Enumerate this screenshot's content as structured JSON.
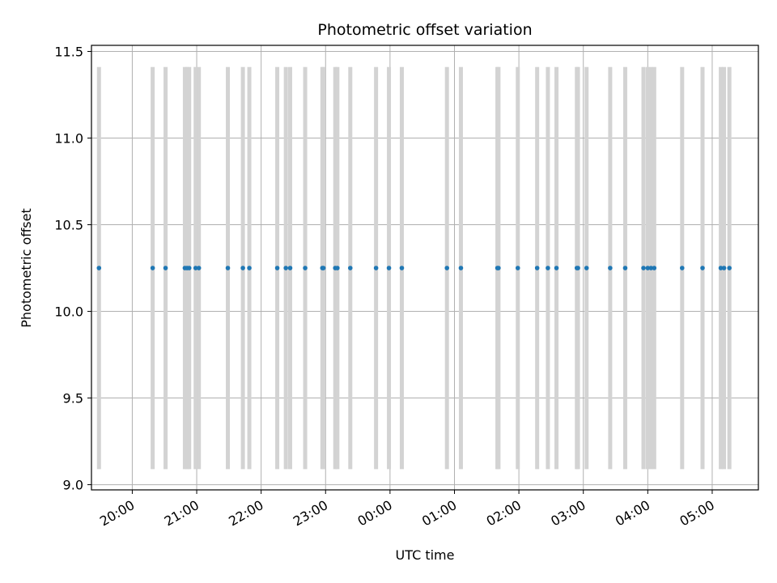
{
  "chart_data": {
    "type": "scatter",
    "title": "Photometric offset variation",
    "xlabel": "UTC time",
    "ylabel": "Photometric offset",
    "xlim": [
      "19:22",
      "05:43"
    ],
    "ylim": [
      8.97,
      11.535
    ],
    "grid": true,
    "x_ticks": [
      "20:00",
      "21:00",
      "22:00",
      "23:00",
      "00:00",
      "01:00",
      "02:00",
      "03:00",
      "04:00",
      "05:00"
    ],
    "y_ticks": [
      "9.0",
      "9.5",
      "10.0",
      "10.5",
      "11.0",
      "11.5"
    ],
    "x_ticks_rotated": true,
    "colors": {
      "points": "#1f77b4",
      "error_bars": "#d3d3d3",
      "grid": "#b0b0b0"
    },
    "series": [
      {
        "x": [
          "19:29",
          "20:19",
          "20:31",
          "20:49",
          "20:51",
          "20:53",
          "20:59",
          "21:02",
          "21:29",
          "21:43",
          "21:49",
          "22:15",
          "22:23",
          "22:27",
          "22:41",
          "22:57",
          "22:58",
          "23:09",
          "23:11",
          "23:23",
          "23:47",
          "23:59",
          "00:11",
          "00:53",
          "01:06",
          "01:40",
          "01:41",
          "01:59",
          "02:17",
          "02:27",
          "02:35",
          "02:54",
          "02:55",
          "03:03",
          "03:25",
          "03:39",
          "03:56",
          "04:00",
          "04:03",
          "04:06",
          "04:32",
          "04:51",
          "05:08",
          "05:11",
          "05:16"
        ],
        "y": [
          10.25,
          10.25,
          10.25,
          10.25,
          10.25,
          10.25,
          10.25,
          10.25,
          10.25,
          10.25,
          10.25,
          10.25,
          10.25,
          10.25,
          10.25,
          10.25,
          10.25,
          10.25,
          10.25,
          10.25,
          10.25,
          10.25,
          10.25,
          10.25,
          10.25,
          10.25,
          10.25,
          10.25,
          10.25,
          10.25,
          10.25,
          10.25,
          10.25,
          10.25,
          10.25,
          10.25,
          10.25,
          10.25,
          10.25,
          10.25,
          10.25,
          10.25,
          10.25,
          10.25,
          10.25
        ],
        "y_err_low": 9.09,
        "y_err_high": 11.41
      }
    ]
  }
}
